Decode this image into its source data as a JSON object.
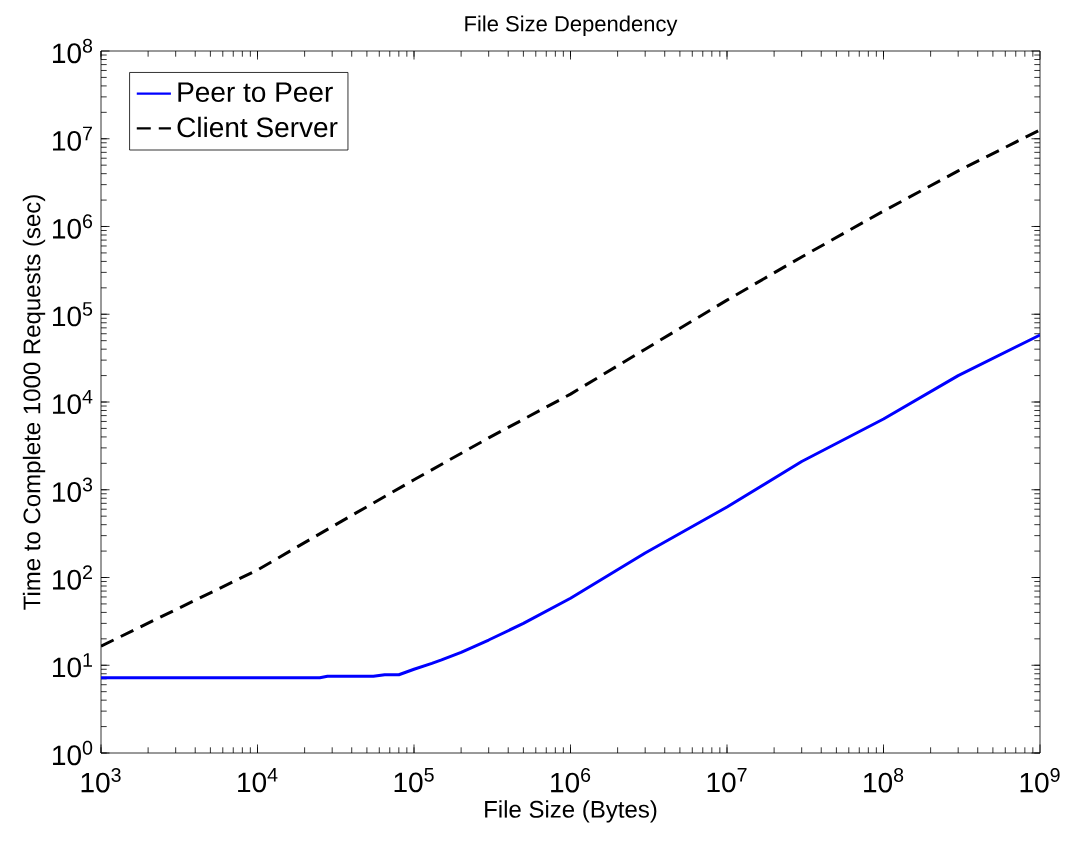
{
  "chart_data": {
    "type": "line",
    "title": "File Size Dependency",
    "xlabel": "File Size (Bytes)",
    "ylabel": "Time to Complete 1000 Requests (sec)",
    "log": "xy",
    "grid": false,
    "legend": "top left",
    "xlim": [
      1000,
      1000000000
    ],
    "ylim": [
      1,
      100000000
    ],
    "xticks": [
      {
        "value": 1000,
        "label": "10$^{3}$"
      },
      {
        "value": 10000,
        "label": "10$^{4}$"
      },
      {
        "value": 100000,
        "label": "10$^{5}$"
      },
      {
        "value": 1000000,
        "label": "10$^{6}$"
      },
      {
        "value": 10000000,
        "label": "10$^{7}$"
      },
      {
        "value": 100000000,
        "label": "10$^{8}$"
      },
      {
        "value": 1000000000,
        "label": "10$^{9}$"
      }
    ],
    "yticks": [
      {
        "value": 1,
        "label": "10$^{0}$"
      },
      {
        "value": 10,
        "label": "10$^{1}$"
      },
      {
        "value": 100,
        "label": "10$^{2}$"
      },
      {
        "value": 1000,
        "label": "10$^{3}$"
      },
      {
        "value": 10000,
        "label": "10$^{4}$"
      },
      {
        "value": 100000,
        "label": "10$^{5}$"
      },
      {
        "value": 1000000,
        "label": "10$^{6}$"
      },
      {
        "value": 10000000,
        "label": "10$^{7}$"
      },
      {
        "value": 100000000,
        "label": "10$^{8}$"
      }
    ],
    "series": [
      {
        "name": "Peer to Peer",
        "color": "#0000ff",
        "line_style": "solid",
        "x": [
          1000,
          10000,
          25000,
          28000,
          55000,
          65000,
          80000,
          100000,
          130000,
          150000,
          200000,
          300000,
          500000,
          1000000,
          3000000,
          10000000,
          30000000,
          100000000,
          300000000,
          1000000000
        ],
        "values": [
          7.2,
          7.2,
          7.2,
          7.5,
          7.5,
          7.8,
          7.8,
          9,
          10.5,
          11.5,
          14,
          19.4,
          30,
          58,
          190,
          635,
          2100,
          6400,
          20000,
          58000
        ]
      },
      {
        "name": "Client Server",
        "color": "#000000",
        "line_style": "dashed",
        "x": [
          1000,
          3000,
          10000,
          30000,
          100000,
          300000,
          1000000,
          3000000,
          10000000,
          30000000,
          100000000,
          300000000,
          1000000000
        ],
        "values": [
          16.5,
          43,
          122,
          380,
          1300,
          3900,
          12300,
          40000,
          145000,
          450000,
          1500000,
          4300000,
          12600000
        ]
      }
    ]
  }
}
